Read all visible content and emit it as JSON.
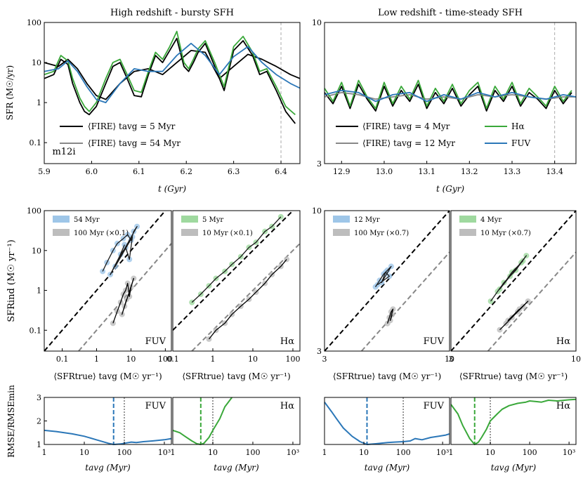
{
  "colors": {
    "fire_short": "#000000",
    "fire_long": "#888888",
    "halpha": "#3aa83a",
    "fuv": "#2b77b8",
    "scatter_blue": "#9ec6e8",
    "scatter_green": "#9fd99f",
    "scatter_gray": "#bdbdbd"
  },
  "chart_data": [
    {
      "id": "top-left",
      "type": "line",
      "title": "High redshift - bursty SFH",
      "xlabel": "t (Gyr)",
      "ylabel": "SFR (M☉/yr)",
      "xlim": [
        5.9,
        6.44
      ],
      "ylim": [
        0.03,
        100
      ],
      "yscale": "log",
      "xticks": [
        "5.9",
        "6.0",
        "6.1",
        "6.2",
        "6.3",
        "6.4"
      ],
      "yticks": [
        "0.1",
        "1",
        "10",
        "100"
      ],
      "vline": 6.4,
      "annotation": "m12i",
      "legend": [
        "⟨FIRE⟩ tavg = 5 Myr",
        "⟨FIRE⟩ tavg = 54 Myr"
      ],
      "series": [
        {
          "name": "⟨FIRE⟩ tavg = 5 Myr",
          "x": [
            5.9,
            5.92,
            5.935,
            5.95,
            5.96,
            5.975,
            5.985,
            5.995,
            6.01,
            6.03,
            6.045,
            6.06,
            6.075,
            6.09,
            6.105,
            6.12,
            6.135,
            6.15,
            6.165,
            6.18,
            6.195,
            6.205,
            6.215,
            6.225,
            6.24,
            6.26,
            6.28,
            6.3,
            6.32,
            6.34,
            6.355,
            6.37,
            6.39,
            6.41,
            6.43
          ],
          "y": [
            4,
            5,
            12,
            9,
            3,
            1,
            0.6,
            0.5,
            0.8,
            3,
            8,
            10,
            4,
            1.5,
            1.4,
            5,
            15,
            10,
            20,
            40,
            8,
            6,
            10,
            18,
            30,
            8,
            2,
            20,
            35,
            15,
            5,
            6,
            2,
            0.6,
            0.3
          ]
        },
        {
          "name": "⟨FIRE⟩ tavg = 54 Myr",
          "x": [
            5.9,
            5.93,
            5.95,
            5.97,
            5.99,
            6.01,
            6.03,
            6.06,
            6.09,
            6.12,
            6.15,
            6.18,
            6.21,
            6.24,
            6.27,
            6.3,
            6.33,
            6.36,
            6.39,
            6.42,
            6.44
          ],
          "y": [
            10,
            8,
            12,
            7,
            3,
            1.5,
            1.2,
            3,
            6,
            7,
            5,
            10,
            20,
            18,
            4,
            8,
            16,
            12,
            8,
            5,
            4
          ]
        },
        {
          "name": "Hα",
          "x": [
            5.9,
            5.92,
            5.935,
            5.95,
            5.96,
            5.975,
            5.985,
            5.995,
            6.01,
            6.03,
            6.045,
            6.06,
            6.075,
            6.09,
            6.105,
            6.12,
            6.135,
            6.15,
            6.165,
            6.18,
            6.195,
            6.205,
            6.215,
            6.225,
            6.24,
            6.26,
            6.28,
            6.3,
            6.32,
            6.34,
            6.355,
            6.37,
            6.39,
            6.41,
            6.43
          ],
          "y": [
            5,
            6,
            15,
            11,
            4,
            1.3,
            0.8,
            0.6,
            1,
            4,
            10,
            12,
            5,
            2,
            1.8,
            6,
            18,
            12,
            25,
            60,
            10,
            7,
            12,
            22,
            35,
            10,
            2.5,
            25,
            45,
            18,
            6,
            7,
            2.5,
            0.8,
            0.5
          ]
        },
        {
          "name": "FUV",
          "x": [
            5.9,
            5.93,
            5.95,
            5.97,
            5.99,
            6.01,
            6.03,
            6.06,
            6.09,
            6.12,
            6.15,
            6.18,
            6.21,
            6.24,
            6.27,
            6.3,
            6.33,
            6.36,
            6.39,
            6.42,
            6.44
          ],
          "y": [
            6,
            7,
            11,
            6,
            2.5,
            1.2,
            1,
            3,
            7,
            6,
            6,
            15,
            30,
            15,
            5,
            14,
            25,
            10,
            5,
            3,
            2.3
          ]
        }
      ]
    },
    {
      "id": "top-right",
      "type": "line",
      "title": "Low redshift - time-steady SFH",
      "xlabel": "t (Gyr)",
      "ylabel": "",
      "xlim": [
        12.86,
        13.45
      ],
      "ylim": [
        3,
        10
      ],
      "yscale": "log",
      "xticks": [
        "12.9",
        "13.0",
        "13.1",
        "13.2",
        "13.3",
        "13.4"
      ],
      "yticks": [
        "3",
        "10"
      ],
      "vline": 13.4,
      "legend": [
        "⟨FIRE⟩ tavg = 4 Myr",
        "⟨FIRE⟩ tavg = 12 Myr",
        "Hα",
        "FUV"
      ],
      "series": [
        {
          "name": "⟨FIRE⟩ tavg = 4 Myr",
          "x": [
            12.86,
            12.88,
            12.9,
            12.92,
            12.94,
            12.96,
            12.98,
            13.0,
            13.02,
            13.04,
            13.06,
            13.08,
            13.1,
            13.12,
            13.14,
            13.16,
            13.18,
            13.2,
            13.22,
            13.24,
            13.26,
            13.28,
            13.3,
            13.32,
            13.34,
            13.36,
            13.38,
            13.4,
            13.42,
            13.44
          ],
          "y": [
            5.5,
            5.0,
            5.8,
            4.8,
            5.9,
            5.2,
            4.7,
            5.8,
            4.9,
            5.6,
            5.1,
            5.9,
            4.8,
            5.5,
            5.0,
            5.7,
            4.9,
            5.4,
            5.8,
            4.7,
            5.6,
            5.1,
            5.8,
            4.9,
            5.5,
            5.2,
            4.8,
            5.6,
            5.0,
            5.5
          ]
        },
        {
          "name": "⟨FIRE⟩ tavg = 12 Myr",
          "x": [
            12.86,
            12.9,
            12.94,
            12.98,
            13.02,
            13.06,
            13.1,
            13.14,
            13.18,
            13.22,
            13.26,
            13.3,
            13.34,
            13.38,
            13.42,
            13.45
          ],
          "y": [
            5.3,
            5.5,
            5.4,
            5.2,
            5.3,
            5.4,
            5.2,
            5.3,
            5.2,
            5.4,
            5.3,
            5.4,
            5.3,
            5.2,
            5.3,
            5.3
          ]
        },
        {
          "name": "Hα",
          "x": [
            12.86,
            12.88,
            12.9,
            12.92,
            12.94,
            12.96,
            12.98,
            13.0,
            13.02,
            13.04,
            13.06,
            13.08,
            13.1,
            13.12,
            13.14,
            13.16,
            13.18,
            13.2,
            13.22,
            13.24,
            13.26,
            13.28,
            13.3,
            13.32,
            13.34,
            13.36,
            13.38,
            13.4,
            13.42,
            13.44
          ],
          "y": [
            5.7,
            5.1,
            6.0,
            4.9,
            6.1,
            5.3,
            4.8,
            6.0,
            5.0,
            5.8,
            5.2,
            6.1,
            4.9,
            5.7,
            5.1,
            5.9,
            5.0,
            5.6,
            6.0,
            4.8,
            5.8,
            5.2,
            6.0,
            5.0,
            5.7,
            5.3,
            4.9,
            5.8,
            5.1,
            5.6
          ]
        },
        {
          "name": "FUV",
          "x": [
            12.86,
            12.9,
            12.94,
            12.98,
            13.02,
            13.06,
            13.1,
            13.14,
            13.18,
            13.22,
            13.26,
            13.3,
            13.34,
            13.38,
            13.42,
            13.45
          ],
          "y": [
            5.4,
            5.6,
            5.5,
            5.1,
            5.4,
            5.5,
            5.1,
            5.4,
            5.2,
            5.5,
            5.3,
            5.5,
            5.3,
            5.2,
            5.4,
            5.3
          ]
        }
      ]
    },
    {
      "id": "mid-1",
      "type": "scatter",
      "xlabel": "⟨SFRtrue⟩ tavg (M☉ yr⁻¹)",
      "ylabel": "SFRind (M☉ yr⁻¹)",
      "xlim": [
        0.03,
        150
      ],
      "ylim": [
        0.03,
        100
      ],
      "scale": "log",
      "xticks": [
        "0.1",
        "1",
        "10",
        "100"
      ],
      "yticks": [
        "0.1",
        "1",
        "10",
        "100"
      ],
      "corner_label": "FUV",
      "legend": [
        "54 Myr",
        "100 Myr (×0.1)"
      ],
      "series": [
        {
          "name": "54 Myr",
          "x": [
            1.5,
            2,
            3,
            4,
            6,
            8,
            10,
            12,
            15,
            2.5,
            5,
            7,
            9,
            11,
            3.5,
            6.5
          ],
          "y": [
            3,
            5,
            10,
            15,
            20,
            25,
            18,
            30,
            40,
            2.5,
            8,
            12,
            6,
            22,
            4,
            14
          ]
        },
        {
          "name": "100 Myr (×0.1)",
          "x": [
            3,
            4,
            5,
            6,
            7,
            8,
            9,
            10,
            12,
            5.5,
            6.5,
            7.5
          ],
          "y": [
            0.15,
            0.3,
            0.5,
            0.8,
            1.0,
            1.5,
            0.7,
            1.2,
            2,
            0.25,
            0.4,
            0.6
          ]
        }
      ]
    },
    {
      "id": "mid-2",
      "type": "scatter",
      "xlabel": "⟨SFRtrue⟩ tavg (M☉ yr⁻¹)",
      "ylabel": "",
      "xlim": [
        0.1,
        150
      ],
      "ylim": [
        0.03,
        100
      ],
      "scale": "log",
      "xticks": [
        "0.1",
        "1",
        "10",
        "100"
      ],
      "yticks": [],
      "corner_label": "Hα",
      "legend": [
        "5 Myr",
        "10 Myr (×0.1)"
      ],
      "series": [
        {
          "name": "5 Myr",
          "x": [
            0.3,
            0.5,
            0.8,
            1.2,
            2,
            3,
            5,
            8,
            12,
            20,
            30,
            50
          ],
          "y": [
            0.5,
            0.8,
            1.3,
            2,
            3,
            4.5,
            7,
            12,
            16,
            30,
            40,
            70
          ]
        },
        {
          "name": "10 Myr (×0.1)",
          "x": [
            0.8,
            1.2,
            2,
            3,
            5,
            8,
            12,
            20,
            30,
            50,
            70
          ],
          "y": [
            0.06,
            0.1,
            0.15,
            0.25,
            0.4,
            0.6,
            0.9,
            1.5,
            2.5,
            4,
            6
          ]
        }
      ]
    },
    {
      "id": "mid-3",
      "type": "scatter",
      "xlabel": "⟨SFRtrue⟩ tavg (M☉ yr⁻¹)",
      "ylabel": "",
      "xlim": [
        3,
        10
      ],
      "ylim": [
        3,
        10
      ],
      "scale": "log",
      "xticks": [
        "3",
        "10"
      ],
      "yticks": [
        "3",
        "10"
      ],
      "corner_label": "FUV",
      "legend": [
        "12 Myr",
        "100 Myr (×0.7)"
      ],
      "series": [
        {
          "name": "12 Myr",
          "x": [
            4.9,
            5.1,
            5.3,
            5.5,
            5.7,
            5.2,
            5.4,
            5.6,
            5.0
          ],
          "y": [
            5.2,
            5.5,
            5.8,
            6.0,
            6.2,
            5.4,
            5.9,
            5.7,
            5.3
          ]
        },
        {
          "name": "100 Myr (×0.7)",
          "x": [
            5.5,
            5.6,
            5.7,
            5.8,
            5.65,
            5.75
          ],
          "y": [
            3.8,
            4.0,
            4.2,
            4.3,
            3.9,
            4.1
          ]
        }
      ]
    },
    {
      "id": "mid-4",
      "type": "scatter",
      "xlabel": "⟨SFRtrue⟩ tavg (M☉ yr⁻¹)",
      "ylabel": "",
      "xlim": [
        3,
        10
      ],
      "ylim": [
        3,
        10
      ],
      "scale": "log",
      "xticks": [
        "3",
        "10"
      ],
      "yticks": [],
      "corner_label": "Hα",
      "legend": [
        "4 Myr",
        "10 Myr (×0.7)"
      ],
      "series": [
        {
          "name": "4 Myr",
          "x": [
            4.4,
            4.7,
            5.0,
            5.3,
            5.6,
            5.9,
            6.2,
            4.8,
            5.4,
            6.0
          ],
          "y": [
            4.6,
            5.0,
            5.4,
            5.7,
            6.0,
            6.4,
            6.8,
            5.1,
            5.9,
            6.5
          ]
        },
        {
          "name": "10 Myr (×0.7)",
          "x": [
            4.8,
            5.1,
            5.4,
            5.7,
            6.0,
            6.3,
            5.2,
            5.8
          ],
          "y": [
            3.6,
            3.8,
            4.0,
            4.2,
            4.4,
            4.6,
            3.9,
            4.3
          ]
        }
      ]
    },
    {
      "id": "bot-1",
      "type": "line",
      "xlabel": "tavg (Myr)",
      "ylabel": "RMSE/RMSEmin",
      "xlim": [
        1,
        1500
      ],
      "ylim": [
        1,
        3
      ],
      "xscale": "log",
      "xticks": [
        "1",
        "10",
        "100",
        "10³"
      ],
      "yticks": [
        "1",
        "2",
        "3"
      ],
      "corner_label": "FUV",
      "best": 54,
      "ref": 100,
      "series": [
        {
          "name": "FUV",
          "x": [
            1,
            2,
            5,
            10,
            20,
            40,
            54,
            80,
            100,
            150,
            200,
            300,
            500,
            1000,
            1500
          ],
          "y": [
            1.6,
            1.55,
            1.45,
            1.35,
            1.2,
            1.05,
            1.0,
            1.02,
            1.05,
            1.1,
            1.08,
            1.12,
            1.15,
            1.2,
            1.25
          ]
        }
      ]
    },
    {
      "id": "bot-2",
      "type": "line",
      "xlabel": "tavg (Myr)",
      "ylabel": "",
      "xlim": [
        1,
        1500
      ],
      "ylim": [
        1,
        3
      ],
      "xscale": "log",
      "xticks": [
        "1",
        "10",
        "100",
        "10³"
      ],
      "yticks": [],
      "corner_label": "Hα",
      "best": 5,
      "ref": 10,
      "series": [
        {
          "name": "Hα",
          "x": [
            1,
            1.5,
            2,
            3,
            4,
            5,
            6,
            8,
            10,
            15,
            20,
            30
          ],
          "y": [
            1.6,
            1.5,
            1.35,
            1.15,
            1.03,
            1.0,
            1.05,
            1.3,
            1.6,
            2.1,
            2.6,
            3.0
          ]
        }
      ]
    },
    {
      "id": "bot-3",
      "type": "line",
      "xlabel": "tavg (Myr)",
      "ylabel": "",
      "xlim": [
        1,
        1500
      ],
      "ylim": [
        1,
        3
      ],
      "xscale": "log",
      "xticks": [
        "1",
        "10",
        "100",
        "10³"
      ],
      "yticks": [],
      "corner_label": "FUV",
      "best": 12,
      "ref": 100,
      "series": [
        {
          "name": "FUV",
          "x": [
            1,
            1.5,
            2,
            3,
            5,
            8,
            12,
            20,
            40,
            60,
            100,
            150,
            200,
            300,
            500,
            800,
            1200,
            1500
          ],
          "y": [
            2.8,
            2.4,
            2.1,
            1.7,
            1.35,
            1.12,
            1.0,
            1.03,
            1.08,
            1.1,
            1.12,
            1.15,
            1.25,
            1.2,
            1.3,
            1.35,
            1.4,
            1.45
          ]
        }
      ]
    },
    {
      "id": "bot-4",
      "type": "line",
      "xlabel": "tavg (Myr)",
      "ylabel": "",
      "xlim": [
        1,
        1500
      ],
      "ylim": [
        1,
        3
      ],
      "xscale": "log",
      "xticks": [
        "1",
        "10",
        "100",
        "10³"
      ],
      "yticks": [],
      "corner_label": "Hα",
      "best": 4,
      "ref": 10,
      "series": [
        {
          "name": "Hα",
          "x": [
            1,
            1.5,
            2,
            3,
            4,
            5,
            6,
            8,
            10,
            15,
            20,
            30,
            50,
            80,
            100,
            200,
            300,
            500,
            1000,
            1500
          ],
          "y": [
            2.7,
            2.3,
            1.8,
            1.25,
            1.0,
            1.1,
            1.3,
            1.65,
            2.0,
            2.3,
            2.5,
            2.65,
            2.75,
            2.8,
            2.85,
            2.8,
            2.88,
            2.85,
            2.9,
            2.92
          ]
        }
      ]
    }
  ]
}
